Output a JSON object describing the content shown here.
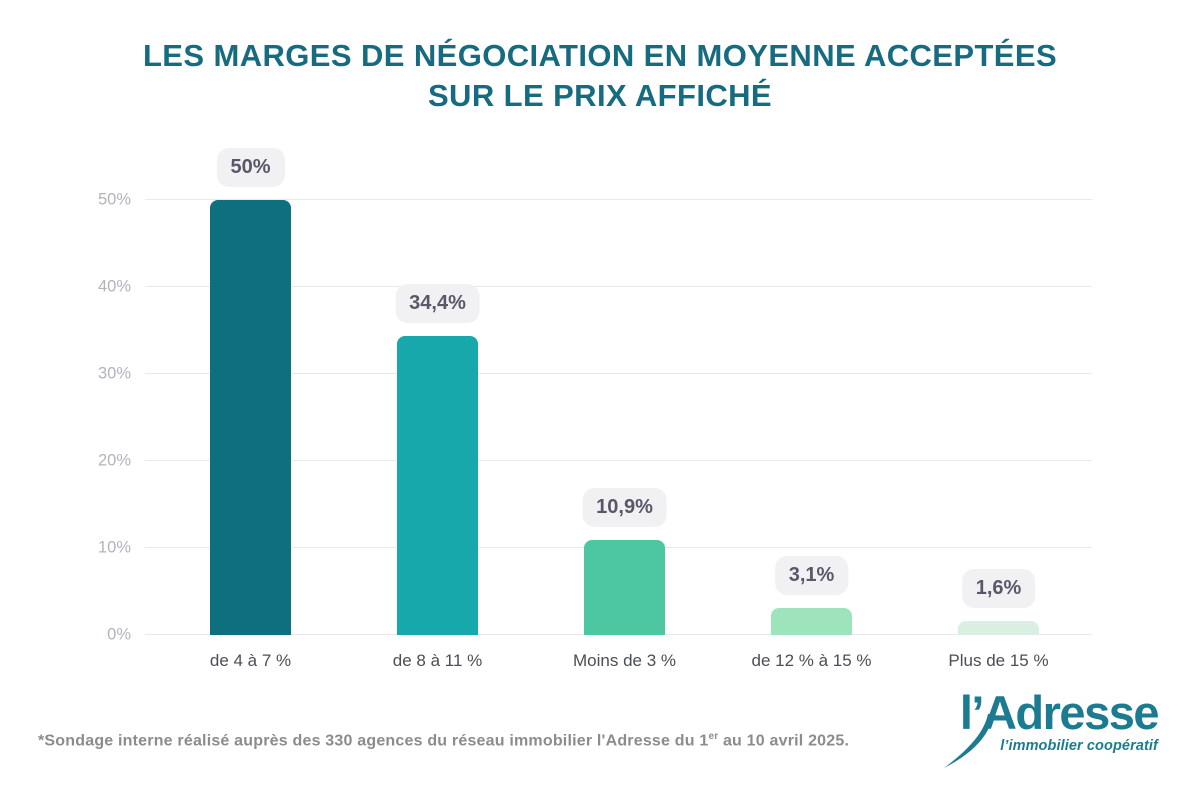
{
  "title": {
    "line1": "LES MARGES DE NÉGOCIATION EN MOYENNE ACCEPTÉES",
    "line2": "SUR LE PRIX AFFICHÉ",
    "color": "#166b80"
  },
  "chart_data": {
    "type": "bar",
    "title": "Les marges de négociation en moyenne acceptées sur le prix affiché",
    "categories": [
      "de 4 à 7 %",
      "de 8 à 11 %",
      "Moins de 3 %",
      "de 12 % à 15 %",
      "Plus de 15 %"
    ],
    "values": [
      50,
      34.4,
      10.9,
      3.1,
      1.6
    ],
    "value_labels": [
      "50%",
      "34,4%",
      "10,9%",
      "3,1%",
      "1,6%"
    ],
    "bar_colors": [
      "#0e6f7f",
      "#17a8ab",
      "#4dc7a2",
      "#9de4bd",
      "#d8efe2"
    ],
    "y_tick_values": [
      0,
      10,
      20,
      30,
      40,
      50
    ],
    "y_tick_labels": [
      "0%",
      "10%",
      "20%",
      "30%",
      "40%",
      "50%"
    ],
    "ylim": [
      0,
      50
    ],
    "grid": true,
    "legend": false,
    "xlabel": "",
    "ylabel": ""
  },
  "footnote": {
    "text_before_sup": "*Sondage interne réalisé auprès des 330 agences du réseau immobilier l'Adresse du 1",
    "sup": "er",
    "text_after_sup": " au 10 avril 2025."
  },
  "logo": {
    "wordmark": "l’Adresse",
    "tagline": "l’immobilier coopératif",
    "color": "#1d7b91"
  }
}
